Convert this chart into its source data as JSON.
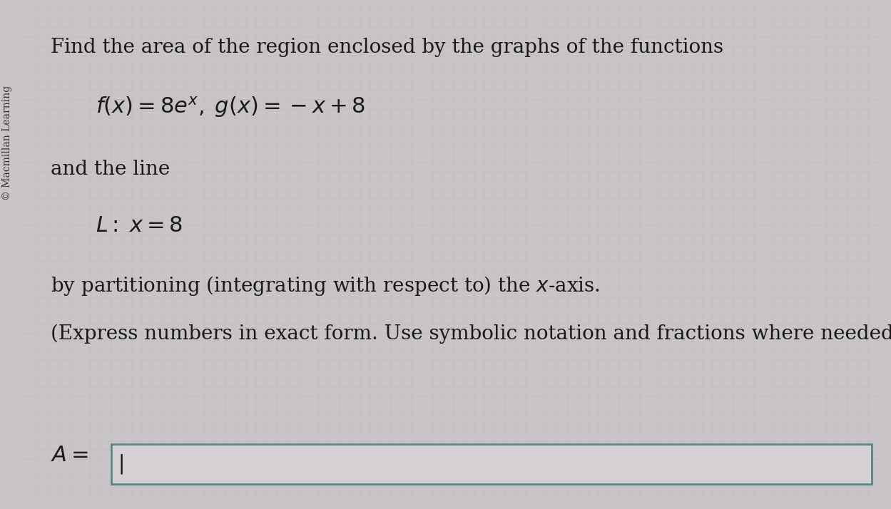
{
  "background_color": "#c8c4c8",
  "grid_color": "#b8b4b8",
  "text_color": "#1a1a1a",
  "watermark_text": "© Macmillan Learning",
  "line1": "Find the area of the region enclosed by the graphs of the functions",
  "line2_math": "$f(x) = 8e^{x},\\; g(x) = -x + 8$",
  "line3": "and the line",
  "line4_math": "$L{:}\\; x = 8$",
  "line5": "by partitioning (integrating with respect to) the $x$-axis.",
  "line6": "(Express numbers in exact form. Use symbolic notation and fractions where needed.)",
  "answer_label": "$A =$",
  "font_size_main": 20,
  "font_size_math": 22,
  "font_size_small": 10,
  "box_edge_color": "#5a8888",
  "box_face_color": "#d4d0d4",
  "cursor_color": "#111111"
}
